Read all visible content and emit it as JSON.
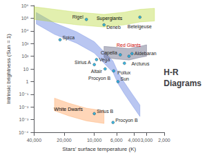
{
  "chart_data": {
    "type": "scatter",
    "title": "H-R\nDiagrams",
    "xlabel": "Stars' surface temperature (K)",
    "ylabel": "Intrinsic brightness (Sun = 1)",
    "log": true,
    "grid": false,
    "xlim": [
      40000,
      2000
    ],
    "xticks": [
      {
        "value": 40000,
        "label": "40,000"
      },
      {
        "value": 20000,
        "label": "20,000"
      },
      {
        "value": 10000,
        "label": "10,000"
      },
      {
        "value": 6000,
        "label": "6,000"
      },
      {
        "value": 4000,
        "label": "4,000"
      },
      {
        "value": 3000,
        "label": "3,000"
      },
      {
        "value": 2000,
        "label": "2,000"
      }
    ],
    "ylim": [
      0.0001,
      1000000
    ],
    "yticks": [
      {
        "value": 0.0001,
        "label": "10⁻⁴"
      },
      {
        "value": 0.001,
        "label": "10⁻³"
      },
      {
        "value": 0.01,
        "label": "10⁻²"
      },
      {
        "value": 0.1,
        "label": "10⁻¹"
      },
      1,
      10,
      {
        "value": 100,
        "label": "10²"
      },
      {
        "value": 1000,
        "label": "10³"
      },
      {
        "value": 10000,
        "label": "10⁴"
      },
      {
        "value": 100000,
        "label": "10⁵"
      },
      {
        "value": 1000000,
        "label": "10⁶"
      }
    ],
    "series": [
      {
        "type": "band",
        "x": [
          38000,
          25000,
          15000,
          10000,
          8000,
          6500,
          5800,
          5000,
          4200,
          3500
        ],
        "upper": [
          281838.29,
          42275.744,
          8455.1488,
          1409.1915,
          225.47063,
          42.275744,
          5.6367659,
          0.84551488,
          0.11273532,
          0.014091915
        ],
        "lower": [
          35481.339,
          5322.2008,
          1064.4402,
          177.40669,
          28.385071,
          5.3222008,
          0.70962678,
          0.10644402,
          0.014192536,
          0.0017740669
        ]
      },
      {
        "type": "band",
        "x": [
          40000,
          25000,
          15000,
          8000,
          5000,
          3500,
          2500
        ],
        "upper": [
          800000,
          500000,
          300000,
          200000,
          300000,
          500000,
          600000
        ],
        "lower": [
          80000,
          50000,
          30000,
          20000,
          30000,
          50000,
          60000
        ]
      },
      {
        "type": "band",
        "x": [
          8000,
          6000,
          4500,
          3500,
          3000
        ],
        "upper": [
          600,
          500,
          400,
          600,
          800
        ],
        "lower": [
          80,
          60,
          50,
          80,
          100
        ]
      },
      {
        "type": "band",
        "x": [
          25000,
          18000,
          12000,
          8000
        ],
        "upper": [
          0.05,
          0.02,
          0.008,
          0.005
        ],
        "lower": [
          0.005,
          0.002,
          0.0008,
          0.0005
        ]
      },
      {
        "type": "scatter",
        "x": [
          12000,
          8000,
          3500,
          22000,
          5500,
          4200,
          9500,
          4500,
          10000,
          5000,
          7800,
          6400,
          5800,
          10000,
          6500
        ],
        "values": [
          80000,
          30000,
          120000,
          2000,
          130,
          160,
          55,
          100,
          22,
          28,
          10,
          7,
          1,
          0.003,
          0.0006
        ],
        "labels": [
          "Rigel",
          "Deneb",
          "Betelgeuse",
          "Spica",
          "Capella",
          "Aldebaran",
          "Vega",
          "Arcturus",
          "Sirius A",
          "Pollux",
          "Altair",
          "Procyon B",
          "Sun",
          "Sirius B",
          "Procyon B"
        ]
      }
    ],
    "annotations": [
      {
        "text": "Supergiants",
        "x": 7000,
        "y": 50000,
        "color": "black"
      },
      {
        "text": "Red Giants",
        "x": 4500,
        "y": 200,
        "color": "#cc0000"
      },
      {
        "text": "White Dwarfs",
        "x": 18000,
        "y": 0.007,
        "color": "black"
      }
    ]
  }
}
